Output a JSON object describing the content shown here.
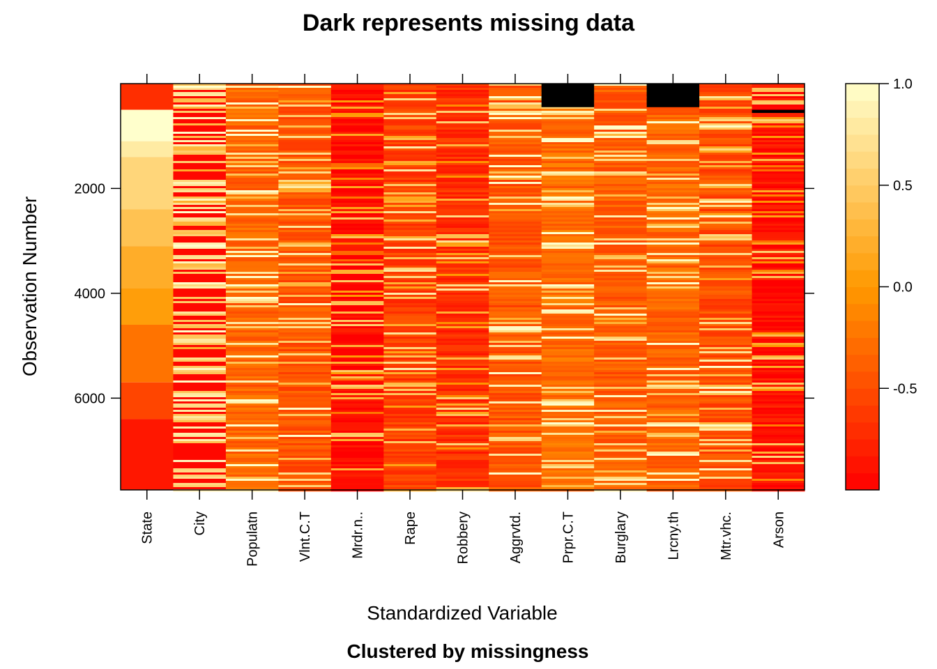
{
  "chart_data": {
    "type": "heatmap",
    "title": "Dark represents missing data",
    "subtitle": "Clustered by missingness",
    "xlabel": "Standardized Variable",
    "ylabel": "Observation Number",
    "variables": [
      "State",
      "City",
      "Populatn",
      "Vlnt.C.T",
      "Mrdr.n..",
      "Rape",
      "Robbery",
      "Aggrvtd.",
      "Prpr.C.T",
      "Burglary",
      "Lrcny.th",
      "Mtr.vhc.",
      "Arson"
    ],
    "ylim": [
      1,
      7750
    ],
    "y_ticks": [
      2000,
      4000,
      6000
    ],
    "y_tick_labels": [
      "2000",
      "4000",
      "6000"
    ],
    "colorbar": {
      "range": [
        -1.0,
        1.0
      ],
      "ticks": [
        -0.5,
        0.0,
        0.5,
        1.0
      ],
      "tick_labels": [
        "-0.5",
        "0.0",
        "0.5",
        "1.0"
      ],
      "low_color": "#ff0000",
      "mid_color": "#ff9900",
      "high_color": "#ffffcc"
    },
    "missing_color": "#000000",
    "missing_blocks": [
      {
        "variable": "Prpr.C.T",
        "from": 1,
        "to": 450
      },
      {
        "variable": "Lrcny.th",
        "from": 1,
        "to": 450
      },
      {
        "variable": "Arson",
        "from": 500,
        "to": 560
      }
    ],
    "state_column_bands": [
      {
        "from": 1,
        "to": 500,
        "value": -0.7
      },
      {
        "from": 500,
        "to": 1100,
        "value": 1.0
      },
      {
        "from": 1100,
        "to": 1400,
        "value": 0.8
      },
      {
        "from": 1400,
        "to": 2400,
        "value": 0.6
      },
      {
        "from": 2400,
        "to": 3100,
        "value": 0.4
      },
      {
        "from": 3100,
        "to": 3900,
        "value": 0.2
      },
      {
        "from": 3900,
        "to": 4600,
        "value": 0.05
      },
      {
        "from": 4600,
        "to": 5700,
        "value": -0.25
      },
      {
        "from": 5700,
        "to": 6400,
        "value": -0.55
      },
      {
        "from": 6400,
        "to": 7750,
        "value": -0.85
      }
    ],
    "column_mean_level": [
      0.0,
      0.2,
      -0.35,
      -0.45,
      -0.95,
      -0.6,
      -0.7,
      -0.45,
      -0.3,
      -0.4,
      -0.35,
      -0.5,
      -0.9
    ]
  }
}
